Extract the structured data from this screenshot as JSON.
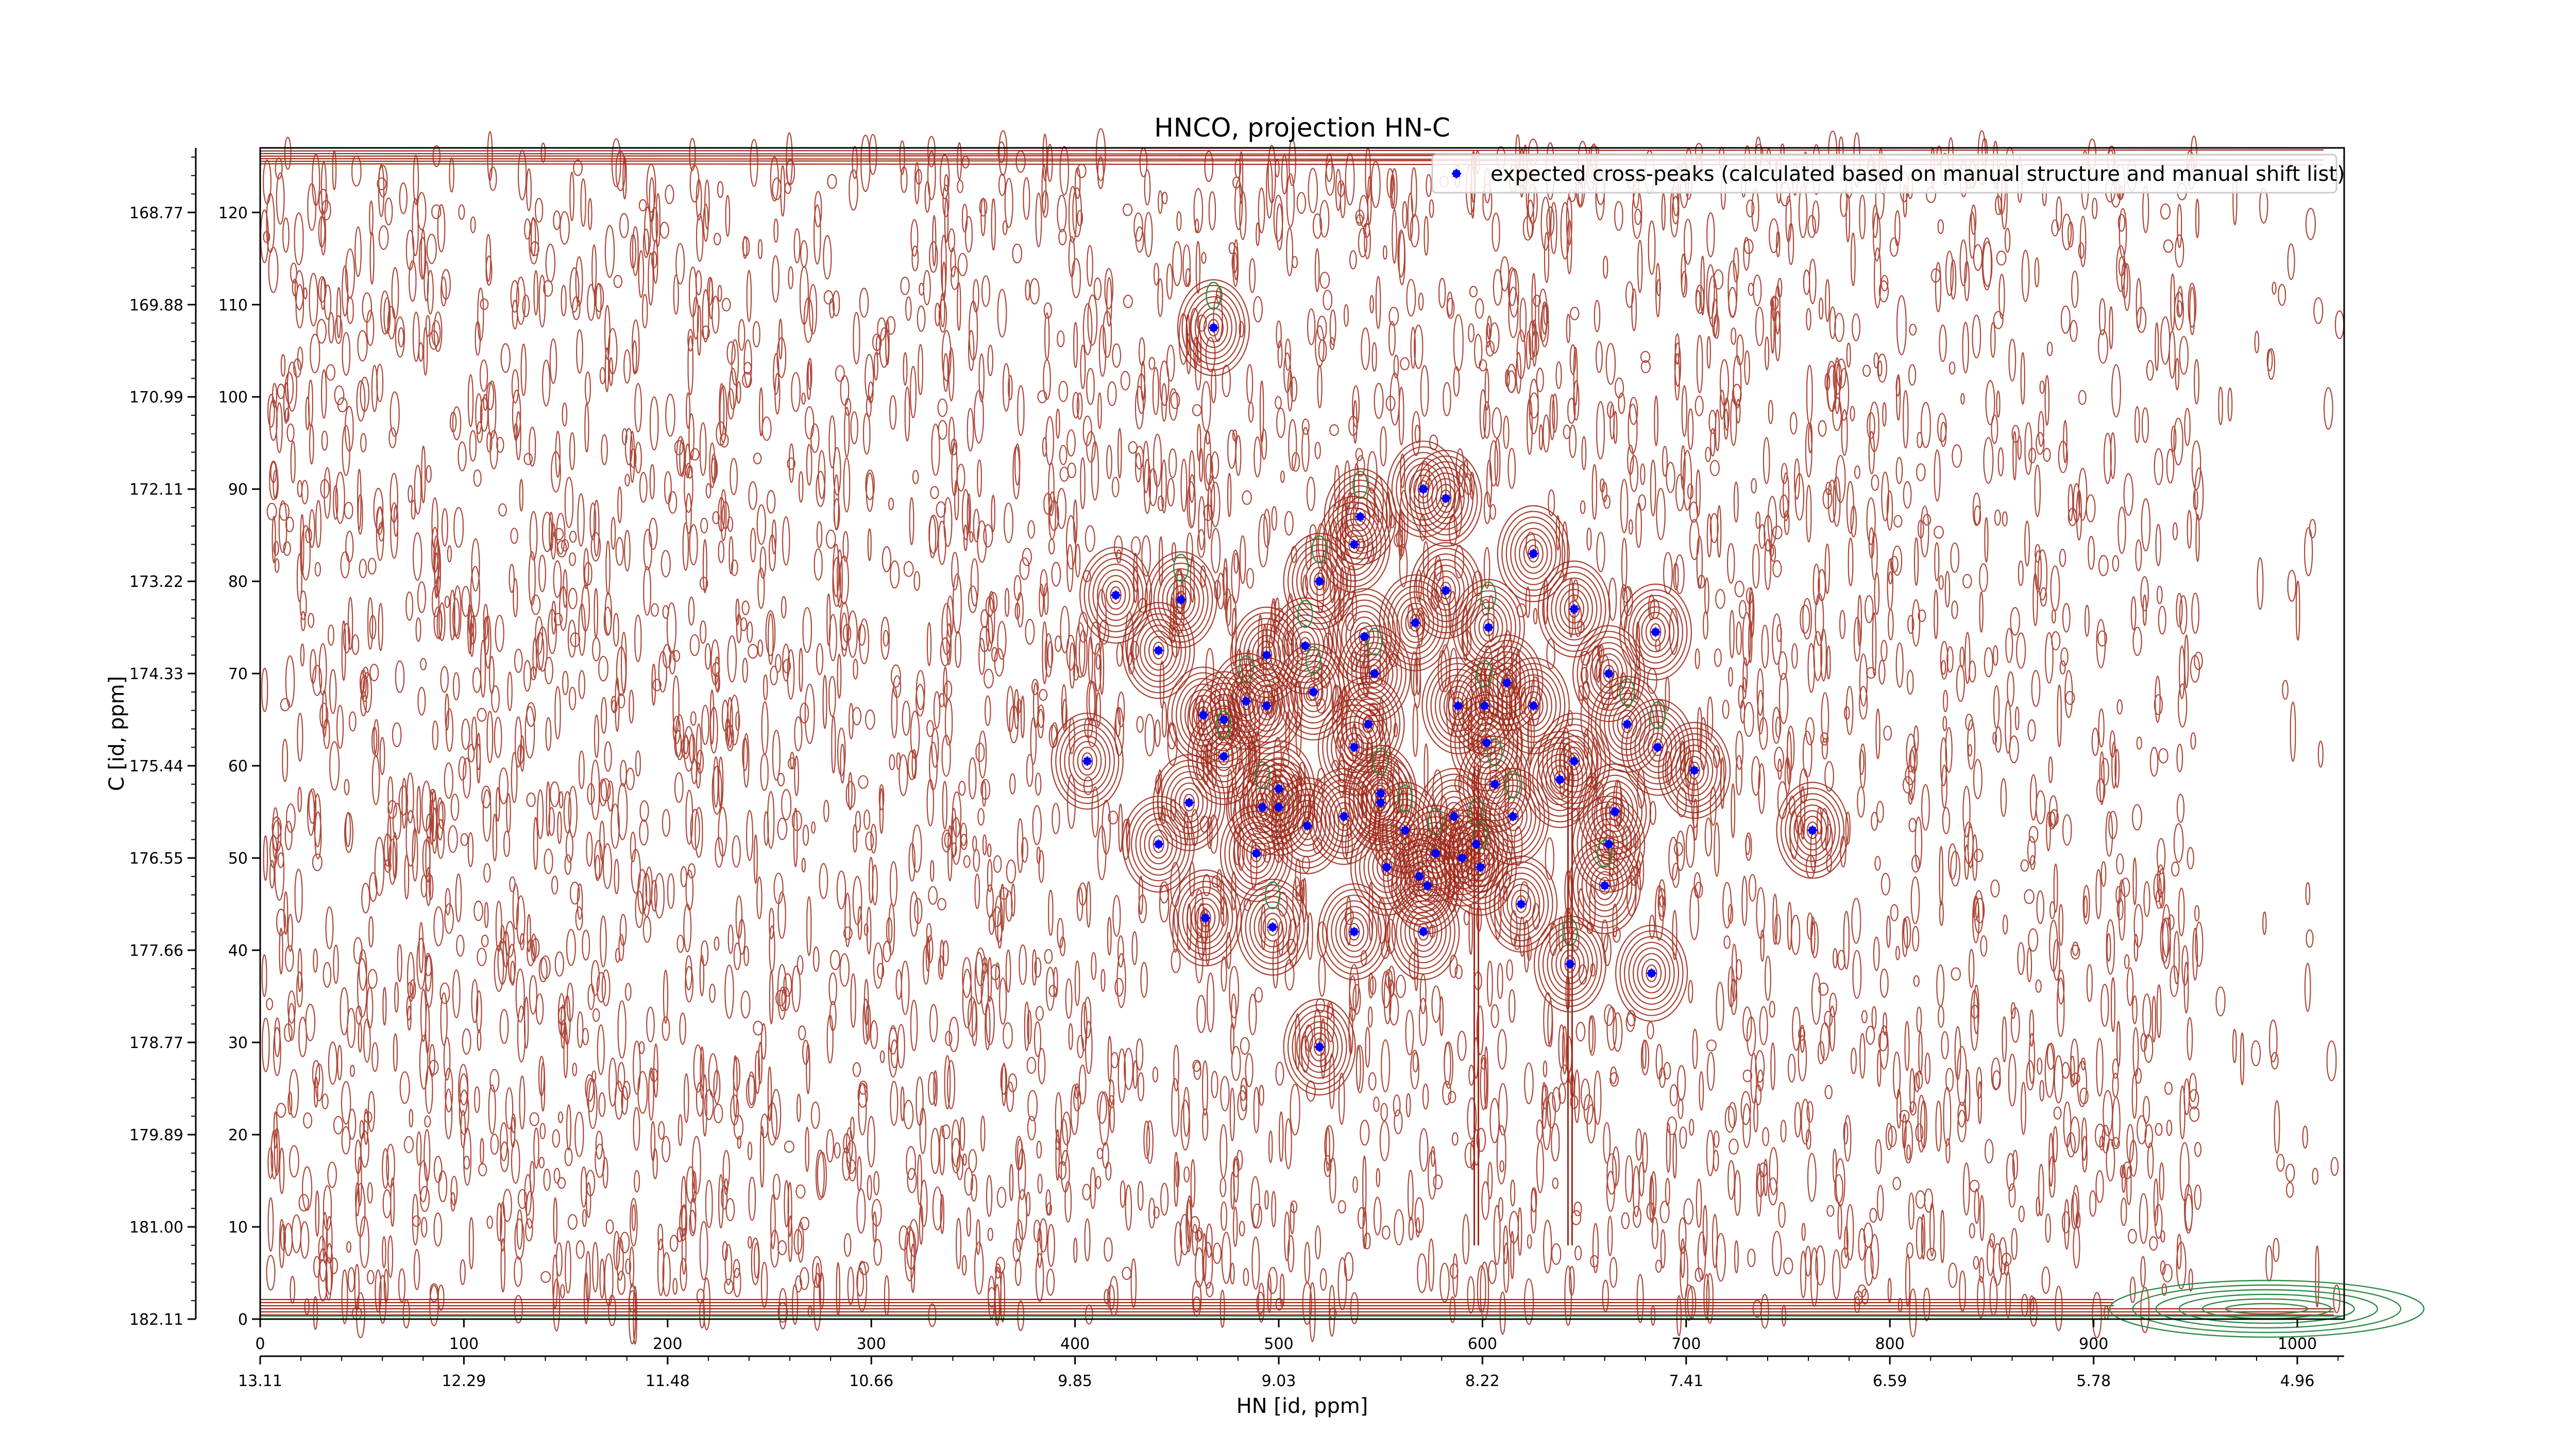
{
  "chart_data": {
    "type": "scatter",
    "title": "HNCO, projection HN-C",
    "xlabel": "HN [id, ppm]",
    "ylabel": "C [id, ppm]",
    "x_range": [
      0,
      1023
    ],
    "y_range": [
      0,
      127
    ],
    "x_ticks": [
      0,
      100,
      200,
      300,
      400,
      500,
      600,
      700,
      800,
      900,
      1000
    ],
    "y_ticks": [
      0,
      10,
      20,
      30,
      40,
      50,
      60,
      70,
      80,
      90,
      100,
      110,
      120
    ],
    "x_ppm_ticks": [
      "13.11",
      "12.29",
      "11.48",
      "10.66",
      "9.85",
      "9.03",
      "8.22",
      "7.41",
      "6.59",
      "5.78",
      "4.96"
    ],
    "y_ppm_ticks": [
      "182.11",
      "181.00",
      "179.89",
      "178.77",
      "177.66",
      "176.55",
      "175.44",
      "174.33",
      "173.22",
      "172.11",
      "170.99",
      "169.88",
      "168.77"
    ],
    "legend_position": "top-right",
    "grid": false,
    "colors": {
      "peak_marker": "#0000ff",
      "positive_contour": "#a02818",
      "negative_contour": "#2e8b45"
    },
    "series": [
      {
        "name": "expected cross-peaks (calculated based on manual structure and manual shift list)",
        "points": [
          [
            468,
            107.5
          ],
          [
            571,
            90
          ],
          [
            582,
            89
          ],
          [
            540,
            87
          ],
          [
            537,
            84
          ],
          [
            625,
            83
          ],
          [
            520,
            80
          ],
          [
            582,
            79
          ],
          [
            420,
            78.5
          ],
          [
            452,
            78
          ],
          [
            645,
            77
          ],
          [
            567,
            75.5
          ],
          [
            603,
            75
          ],
          [
            685,
            74.5
          ],
          [
            542,
            74
          ],
          [
            513,
            73
          ],
          [
            441,
            72.5
          ],
          [
            494,
            72
          ],
          [
            547,
            70
          ],
          [
            662,
            70
          ],
          [
            612,
            69
          ],
          [
            517,
            68
          ],
          [
            463,
            65.5
          ],
          [
            473,
            65
          ],
          [
            484,
            67
          ],
          [
            494,
            66.5
          ],
          [
            588,
            66.5
          ],
          [
            601,
            66.5
          ],
          [
            625,
            66.5
          ],
          [
            544,
            64.5
          ],
          [
            671,
            64.5
          ],
          [
            537,
            62
          ],
          [
            602,
            62.5
          ],
          [
            686,
            62
          ],
          [
            704,
            59.5
          ],
          [
            406,
            60.5
          ],
          [
            473,
            61
          ],
          [
            645,
            60.5
          ],
          [
            500,
            57.5
          ],
          [
            606,
            58
          ],
          [
            638,
            58.5
          ],
          [
            456,
            56
          ],
          [
            492,
            55.5
          ],
          [
            500,
            55.5
          ],
          [
            550,
            56
          ],
          [
            550,
            57
          ],
          [
            532,
            54.5
          ],
          [
            586,
            54.5
          ],
          [
            615,
            54.5
          ],
          [
            665,
            55
          ],
          [
            514,
            53.5
          ],
          [
            562,
            53
          ],
          [
            762,
            53
          ],
          [
            441,
            51.5
          ],
          [
            597,
            51.5
          ],
          [
            662,
            51.5
          ],
          [
            489,
            50.5
          ],
          [
            577,
            50.5
          ],
          [
            590,
            50
          ],
          [
            553,
            49
          ],
          [
            599,
            49
          ],
          [
            569,
            48
          ],
          [
            573,
            47
          ],
          [
            660,
            47
          ],
          [
            619,
            45
          ],
          [
            464,
            43.5
          ],
          [
            497,
            42.5
          ],
          [
            537,
            42
          ],
          [
            571,
            42
          ],
          [
            643,
            38.5
          ],
          [
            683,
            37.5
          ],
          [
            520,
            29.5
          ]
        ]
      }
    ]
  }
}
